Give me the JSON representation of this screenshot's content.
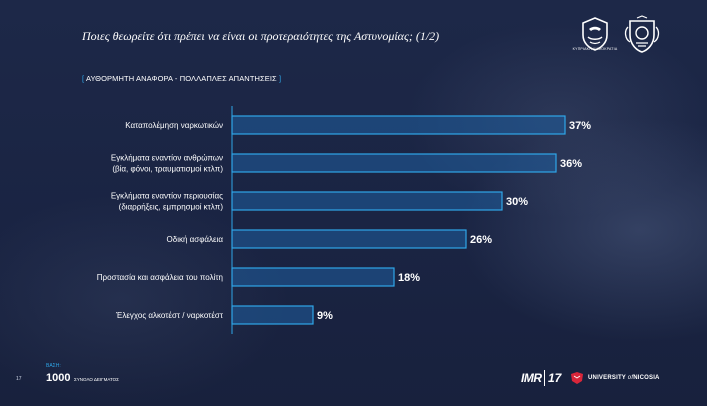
{
  "header": {
    "title": "Ποιες θεωρείτε ότι πρέπει να είναι οι προτεραιότητες της Αστυνομίας; (1/2)",
    "subtitle_open": "[",
    "subtitle": " ΑΥΘΟΡΜΗΤΗ ΑΝΑΦΟΡΑ - ΠΟΛΛΑΠΛΕΣ ΑΠΑΝΤΗΣΕΙΣ ",
    "subtitle_close": "]",
    "logo_caption": "ΚΥΠΡΙΑΚΗ ΔΗΜΟΚΡΑΤΙΑ"
  },
  "chart_data": {
    "type": "bar",
    "orientation": "horizontal",
    "categories": [
      [
        "Καταπολέμηση ναρκωτικών"
      ],
      [
        "Εγκλήματα εναντίον ανθρώπων",
        "(βία, φόνοι, τραυματισμοί κτλπ)"
      ],
      [
        "Εγκλήματα εναντίον περιουσίας",
        "(διαρρήξεις, εμπρησμοί κτλπ)"
      ],
      [
        "Οδική ασφάλεια"
      ],
      [
        "Προστασία και ασφάλεια του πολίτη"
      ],
      [
        "Έλεγχος αλκοτέστ / ναρκοτέστ"
      ]
    ],
    "values": [
      37,
      36,
      30,
      26,
      18,
      9
    ],
    "value_labels": [
      "37%",
      "36%",
      "30%",
      "26%",
      "18%",
      "9%"
    ],
    "unit": "%",
    "xlim": [
      0,
      40
    ],
    "grid": false,
    "colors": {
      "bar_fill": "#1f5fa0",
      "bar_edge": "#2fa6e8",
      "axis": "#2fa6e8",
      "text": "#ffffff"
    }
  },
  "footer": {
    "page_number": "17",
    "base_label": "ΒΑΣΗ:",
    "base_value": "1000",
    "base_text": "ΣΥΝΟΛΟ ΔΕΙΓΜΑΤΟΣ",
    "imr_logo": "IMR",
    "imr_years": "17",
    "university_prefix": "UNIVERSITY",
    "university_of": "of",
    "university_name": "NICOSIA"
  }
}
